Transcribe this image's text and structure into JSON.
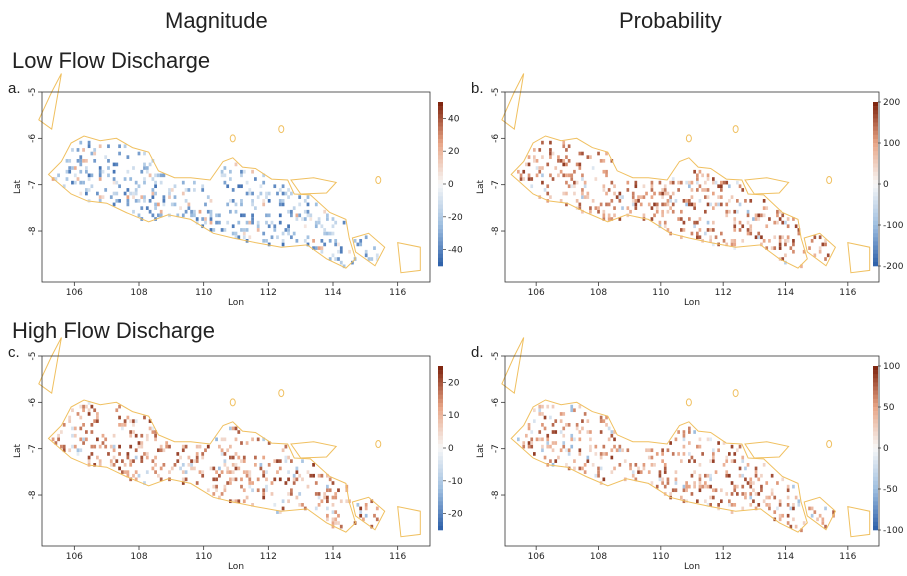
{
  "headers": {
    "left": "Magnitude",
    "right": "Probability"
  },
  "rows": {
    "top": "Low Flow Discharge",
    "bottom": "High Flow Discharge"
  },
  "colors": {
    "coast": "#f0c060",
    "high": "#7a1f0a",
    "pos": "#c8573a",
    "neg": "#2b5ea8",
    "neutral": "#f7f7f7"
  },
  "chart_data": [
    {
      "type": "heatmap",
      "panel": "a.",
      "xlabel": "Lon",
      "ylabel": "Lat",
      "xticks": [
        "106",
        "108",
        "110",
        "112",
        "114",
        "116"
      ],
      "yticks": [
        "-5",
        "-6",
        "-7",
        "-8"
      ],
      "xlim": [
        105,
        117
      ],
      "ylim": [
        -9.1,
        -5
      ],
      "colorbar": {
        "min": -50,
        "max": 50,
        "ticks": [
          "40",
          "20",
          "0",
          "-20",
          "-40"
        ]
      },
      "dominant_sign": "negative"
    },
    {
      "type": "heatmap",
      "panel": "b.",
      "xlabel": "Lon",
      "ylabel": "Lat",
      "xticks": [
        "106",
        "108",
        "110",
        "112",
        "114",
        "116"
      ],
      "yticks": [
        "-5",
        "-6",
        "-7",
        "-8"
      ],
      "xlim": [
        105,
        117
      ],
      "ylim": [
        -9.1,
        -5
      ],
      "colorbar": {
        "min": -200,
        "max": 200,
        "ticks": [
          "200",
          "100",
          "0",
          "-100",
          "-200"
        ]
      },
      "dominant_sign": "positive"
    },
    {
      "type": "heatmap",
      "panel": "c.",
      "xlabel": "Lon",
      "ylabel": "Lat",
      "xticks": [
        "106",
        "108",
        "110",
        "112",
        "114",
        "116"
      ],
      "yticks": [
        "-5",
        "-6",
        "-7",
        "-8"
      ],
      "xlim": [
        105,
        117
      ],
      "ylim": [
        -9.1,
        -5
      ],
      "colorbar": {
        "min": -25,
        "max": 25,
        "ticks": [
          "20",
          "10",
          "0",
          "-10",
          "-20"
        ]
      },
      "dominant_sign": "positive"
    },
    {
      "type": "heatmap",
      "panel": "d.",
      "xlabel": "Lon",
      "ylabel": "Lat",
      "xticks": [
        "106",
        "108",
        "110",
        "112",
        "114",
        "116"
      ],
      "yticks": [
        "-5",
        "-6",
        "-7",
        "-8"
      ],
      "xlim": [
        105,
        117
      ],
      "ylim": [
        -9.1,
        -5
      ],
      "colorbar": {
        "min": -100,
        "max": 100,
        "ticks": [
          "100",
          "50",
          "0",
          "-50",
          "-100"
        ]
      },
      "dominant_sign": "positive"
    }
  ]
}
